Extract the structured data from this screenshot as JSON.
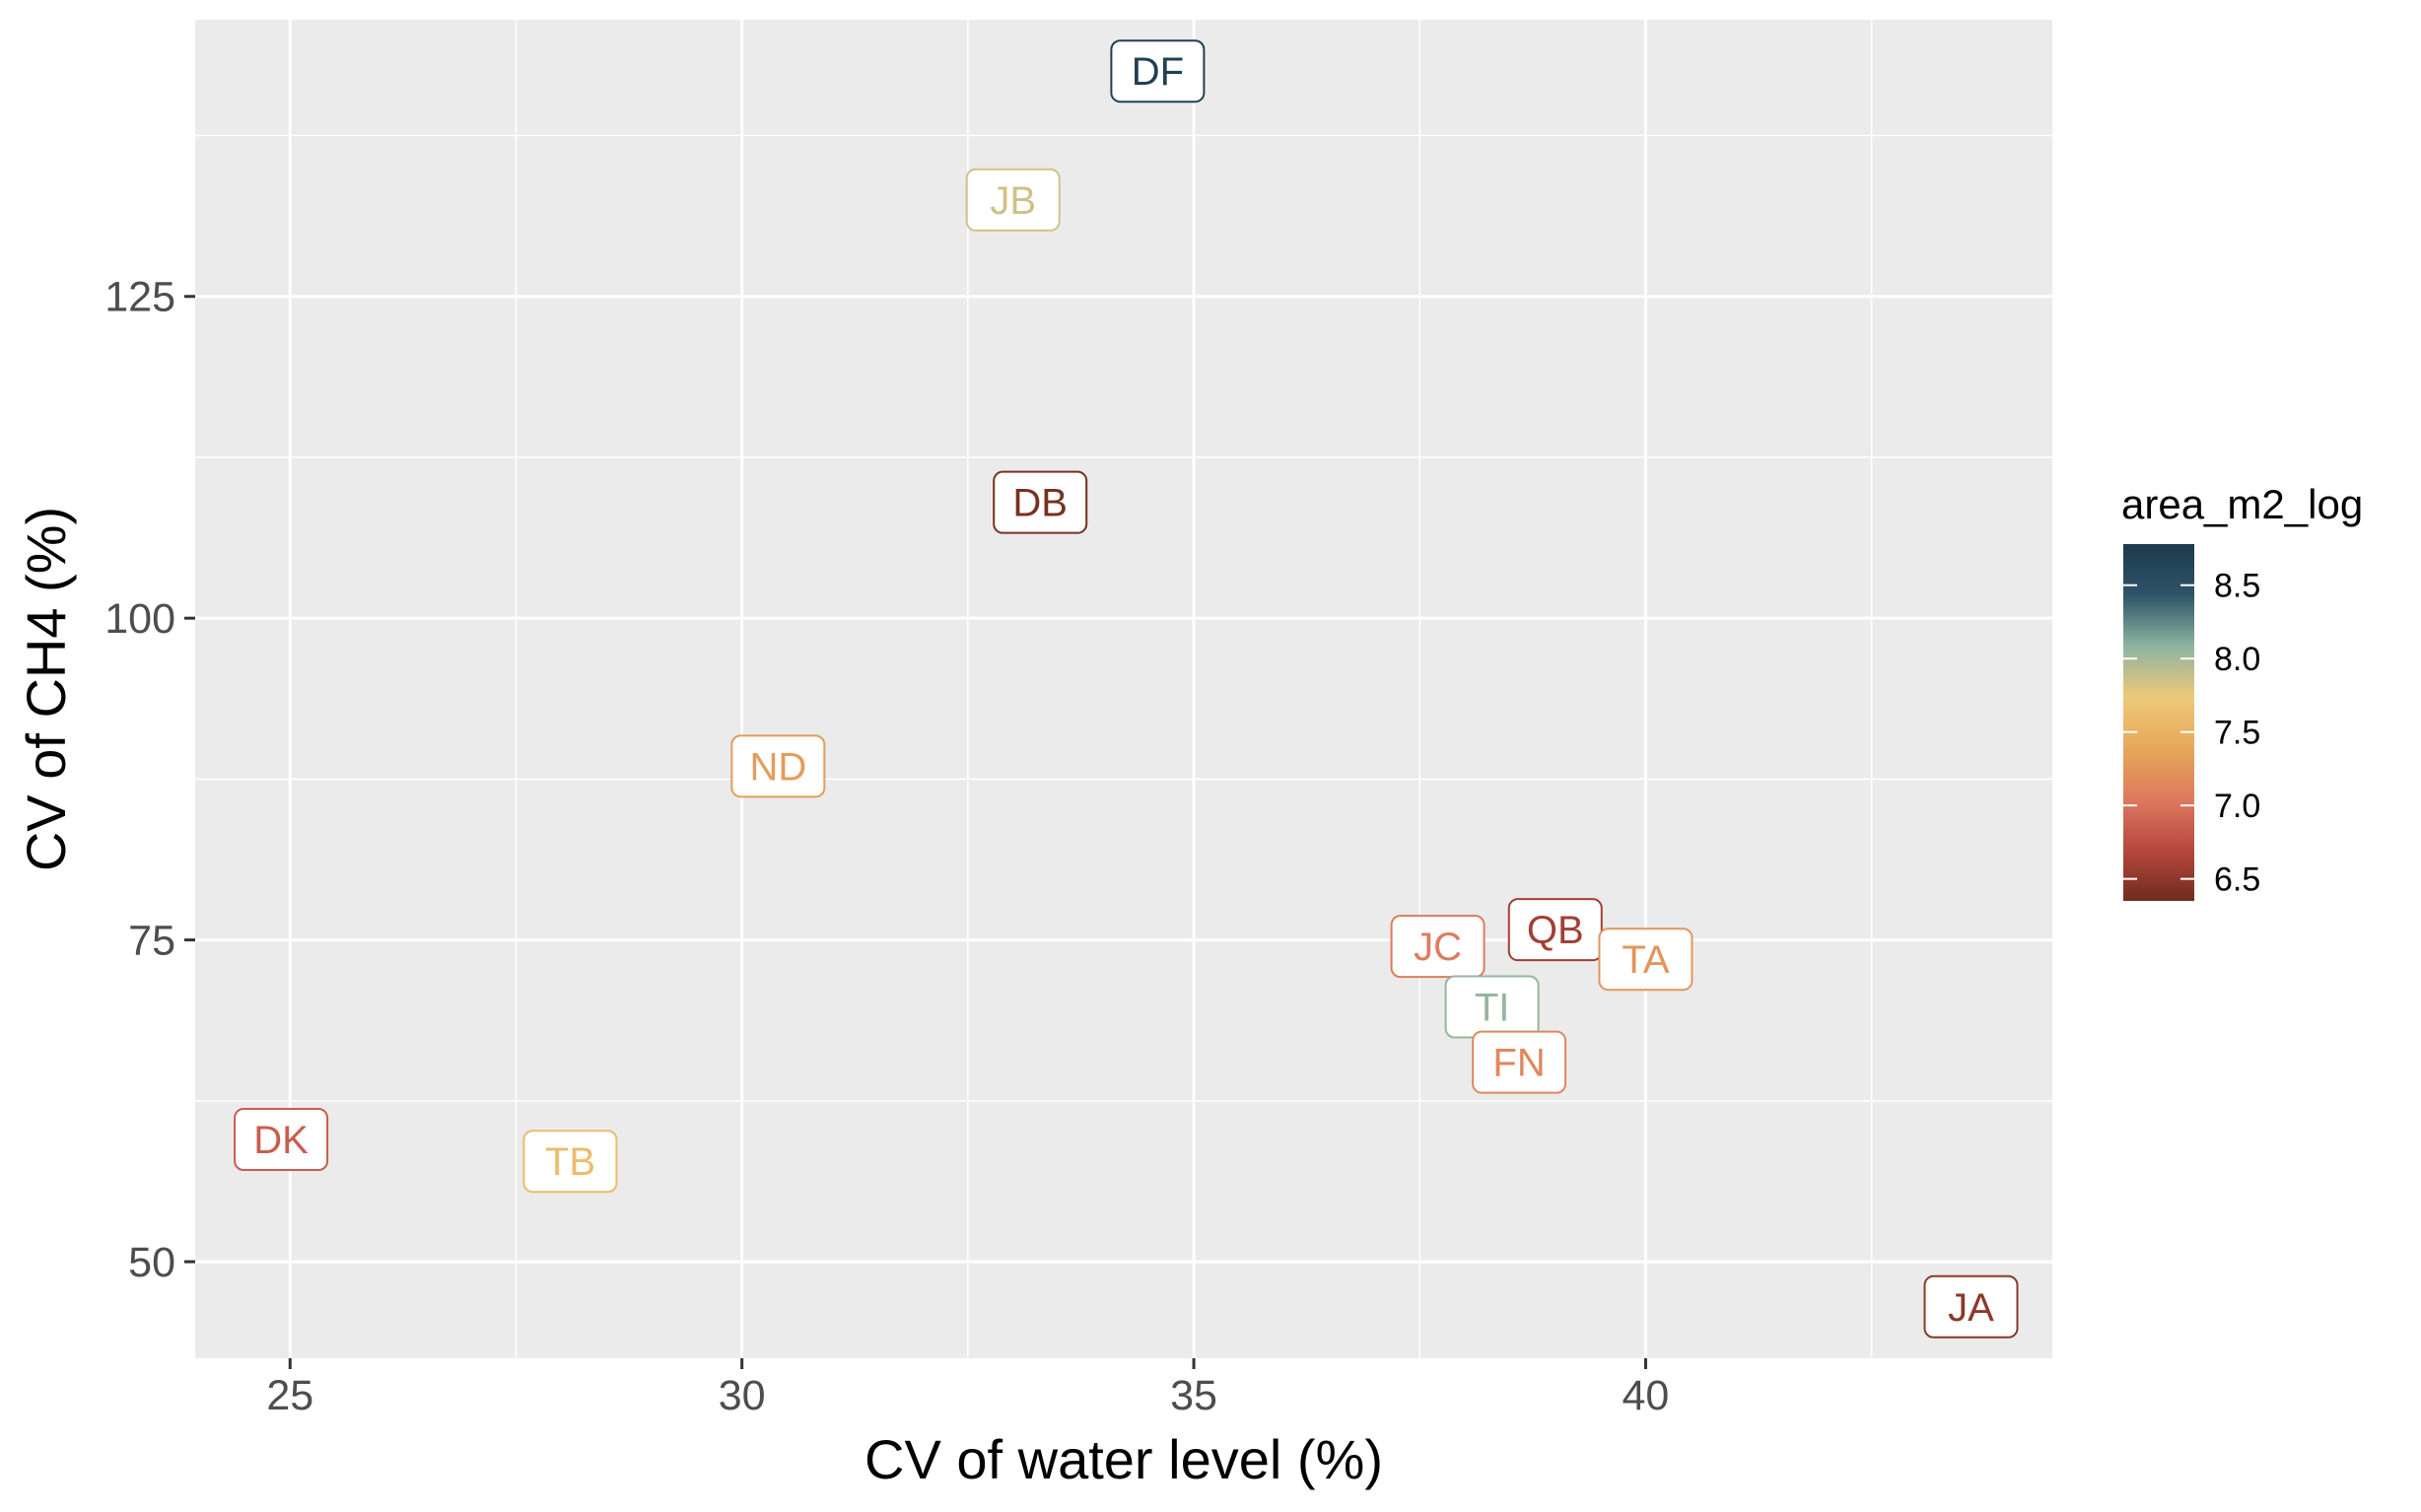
{
  "chart_data": {
    "type": "scatter",
    "title": "",
    "xlabel": "CV of water level (%)",
    "ylabel": "CV of CH4 (%)",
    "xlim": [
      23.95,
      44.5
    ],
    "ylim": [
      42.5,
      146.5
    ],
    "x_ticks": [
      25,
      30,
      35,
      40
    ],
    "y_ticks": [
      50,
      75,
      100,
      125
    ],
    "grid": true,
    "point_style": "label",
    "colorbar": {
      "title": "area_m2_log",
      "min": 6.35,
      "max": 8.78,
      "ticks": [
        6.5,
        7.0,
        7.5,
        8.0,
        8.5
      ],
      "tick_labels": [
        "6.5",
        "7.0",
        "7.5",
        "8.0",
        "8.5"
      ],
      "colors": [
        "#6e2c1c",
        "#b6473f",
        "#de7a5f",
        "#e6a858",
        "#eec97a",
        "#8db3a0",
        "#2e5468",
        "#1c3a4c"
      ],
      "placement": "right"
    },
    "points": [
      {
        "label": "DF",
        "x": 34.6,
        "y": 142.5,
        "area_m2_log": 8.7
      },
      {
        "label": "JB",
        "x": 33.0,
        "y": 132.5,
        "area_m2_log": 7.85
      },
      {
        "label": "DB",
        "x": 33.3,
        "y": 109.0,
        "area_m2_log": 6.4
      },
      {
        "label": "ND",
        "x": 30.4,
        "y": 88.5,
        "area_m2_log": 7.3
      },
      {
        "label": "JC",
        "x": 37.7,
        "y": 74.5,
        "area_m2_log": 7.05
      },
      {
        "label": "QB",
        "x": 39.0,
        "y": 75.8,
        "area_m2_log": 6.6
      },
      {
        "label": "TA",
        "x": 40.0,
        "y": 73.5,
        "area_m2_log": 7.25
      },
      {
        "label": "TI",
        "x": 38.3,
        "y": 69.8,
        "area_m2_log": 8.05
      },
      {
        "label": "FN",
        "x": 38.6,
        "y": 65.5,
        "area_m2_log": 7.15
      },
      {
        "label": "DK",
        "x": 24.9,
        "y": 59.5,
        "area_m2_log": 6.85
      },
      {
        "label": "TB",
        "x": 28.1,
        "y": 57.8,
        "area_m2_log": 7.6
      },
      {
        "label": "JA",
        "x": 43.6,
        "y": 46.5,
        "area_m2_log": 6.5
      }
    ]
  }
}
